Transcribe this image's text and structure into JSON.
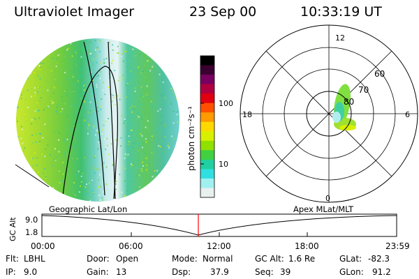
{
  "header": {
    "title": "Ultraviolet Imager",
    "date": "23 Sep 00",
    "time": "10:33:19 UT"
  },
  "colorbar": {
    "unit_label": "photon cm⁻²s⁻¹",
    "ticks": [
      "100",
      "10"
    ],
    "colors": [
      "#000000",
      "#3a0030",
      "#7a0060",
      "#b00040",
      "#e00010",
      "#ff5000",
      "#ff9a00",
      "#ffd800",
      "#d8f000",
      "#90e000",
      "#40d040",
      "#20d0a0",
      "#30e0e0",
      "#a0f0f0",
      "#e8f0f0"
    ]
  },
  "polar_plot": {
    "labels": {
      "top": "12",
      "bottom": "0",
      "left": "18",
      "right": "6"
    },
    "latitude_labels": [
      "60",
      "70",
      "80"
    ]
  },
  "timeline": {
    "left_label": "Geographic Lat/Lon",
    "right_label": "Apex MLat/MLT",
    "y_axis_label": "GC Alt",
    "y_ticks": [
      "9.0",
      "1.8"
    ],
    "x_ticks": [
      "00:00",
      "06:00",
      "12:00",
      "18:00",
      "23:59"
    ],
    "marker_color": "#ff0000"
  },
  "footer": {
    "row1": [
      {
        "label": "Flt:",
        "value": "LBHL"
      },
      {
        "label": "Door:",
        "value": "Open"
      },
      {
        "label": "Mode:",
        "value": "Normal"
      },
      {
        "label": "GC Alt:",
        "value": "1.6 Re"
      },
      {
        "label": "GLat:",
        "value": "-82.3"
      }
    ],
    "row2": [
      {
        "label": "IP:",
        "value": "9.0"
      },
      {
        "label": "Gain:",
        "value": "13"
      },
      {
        "label": "Dsp:",
        "value": "37.9"
      },
      {
        "label": "Seq:",
        "value": "39"
      },
      {
        "label": "GLon:",
        "value": "91.2"
      }
    ]
  }
}
